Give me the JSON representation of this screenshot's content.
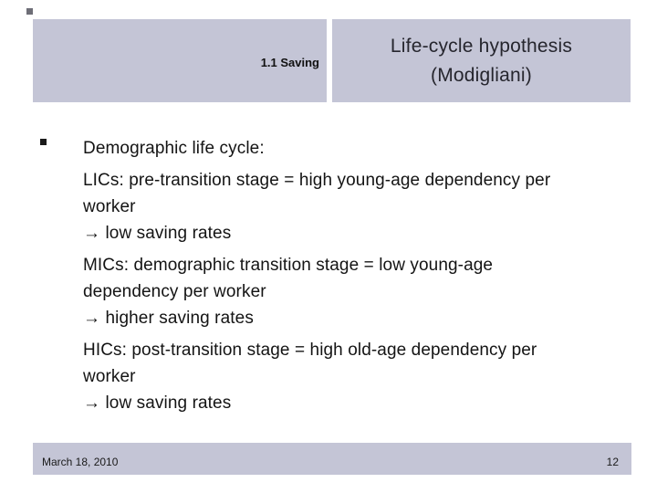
{
  "slide": {
    "header": {
      "section_label": "1.1 Saving",
      "title": "Life-cycle hypothesis\n(Modigliani)"
    },
    "body": {
      "bullet_glyph": "▪",
      "paragraphs": [
        {
          "text": "Demographic life cycle:"
        },
        {
          "text": "LICs: pre-transition stage = high young-age dependency per\nworker\n→ low saving rates"
        },
        {
          "text": "MICs: demographic transition stage = low young-age\ndependency per worker\n→ higher saving rates"
        },
        {
          "text": "HICs: post-transition stage = high old-age dependency per\nworker\n→ low saving rates"
        }
      ]
    },
    "footer": {
      "date": "March 18, 2010",
      "page_number": "12"
    },
    "colors": {
      "panel": "#c4c5d6",
      "title_text": "#26262e",
      "body_text": "#141414"
    }
  }
}
